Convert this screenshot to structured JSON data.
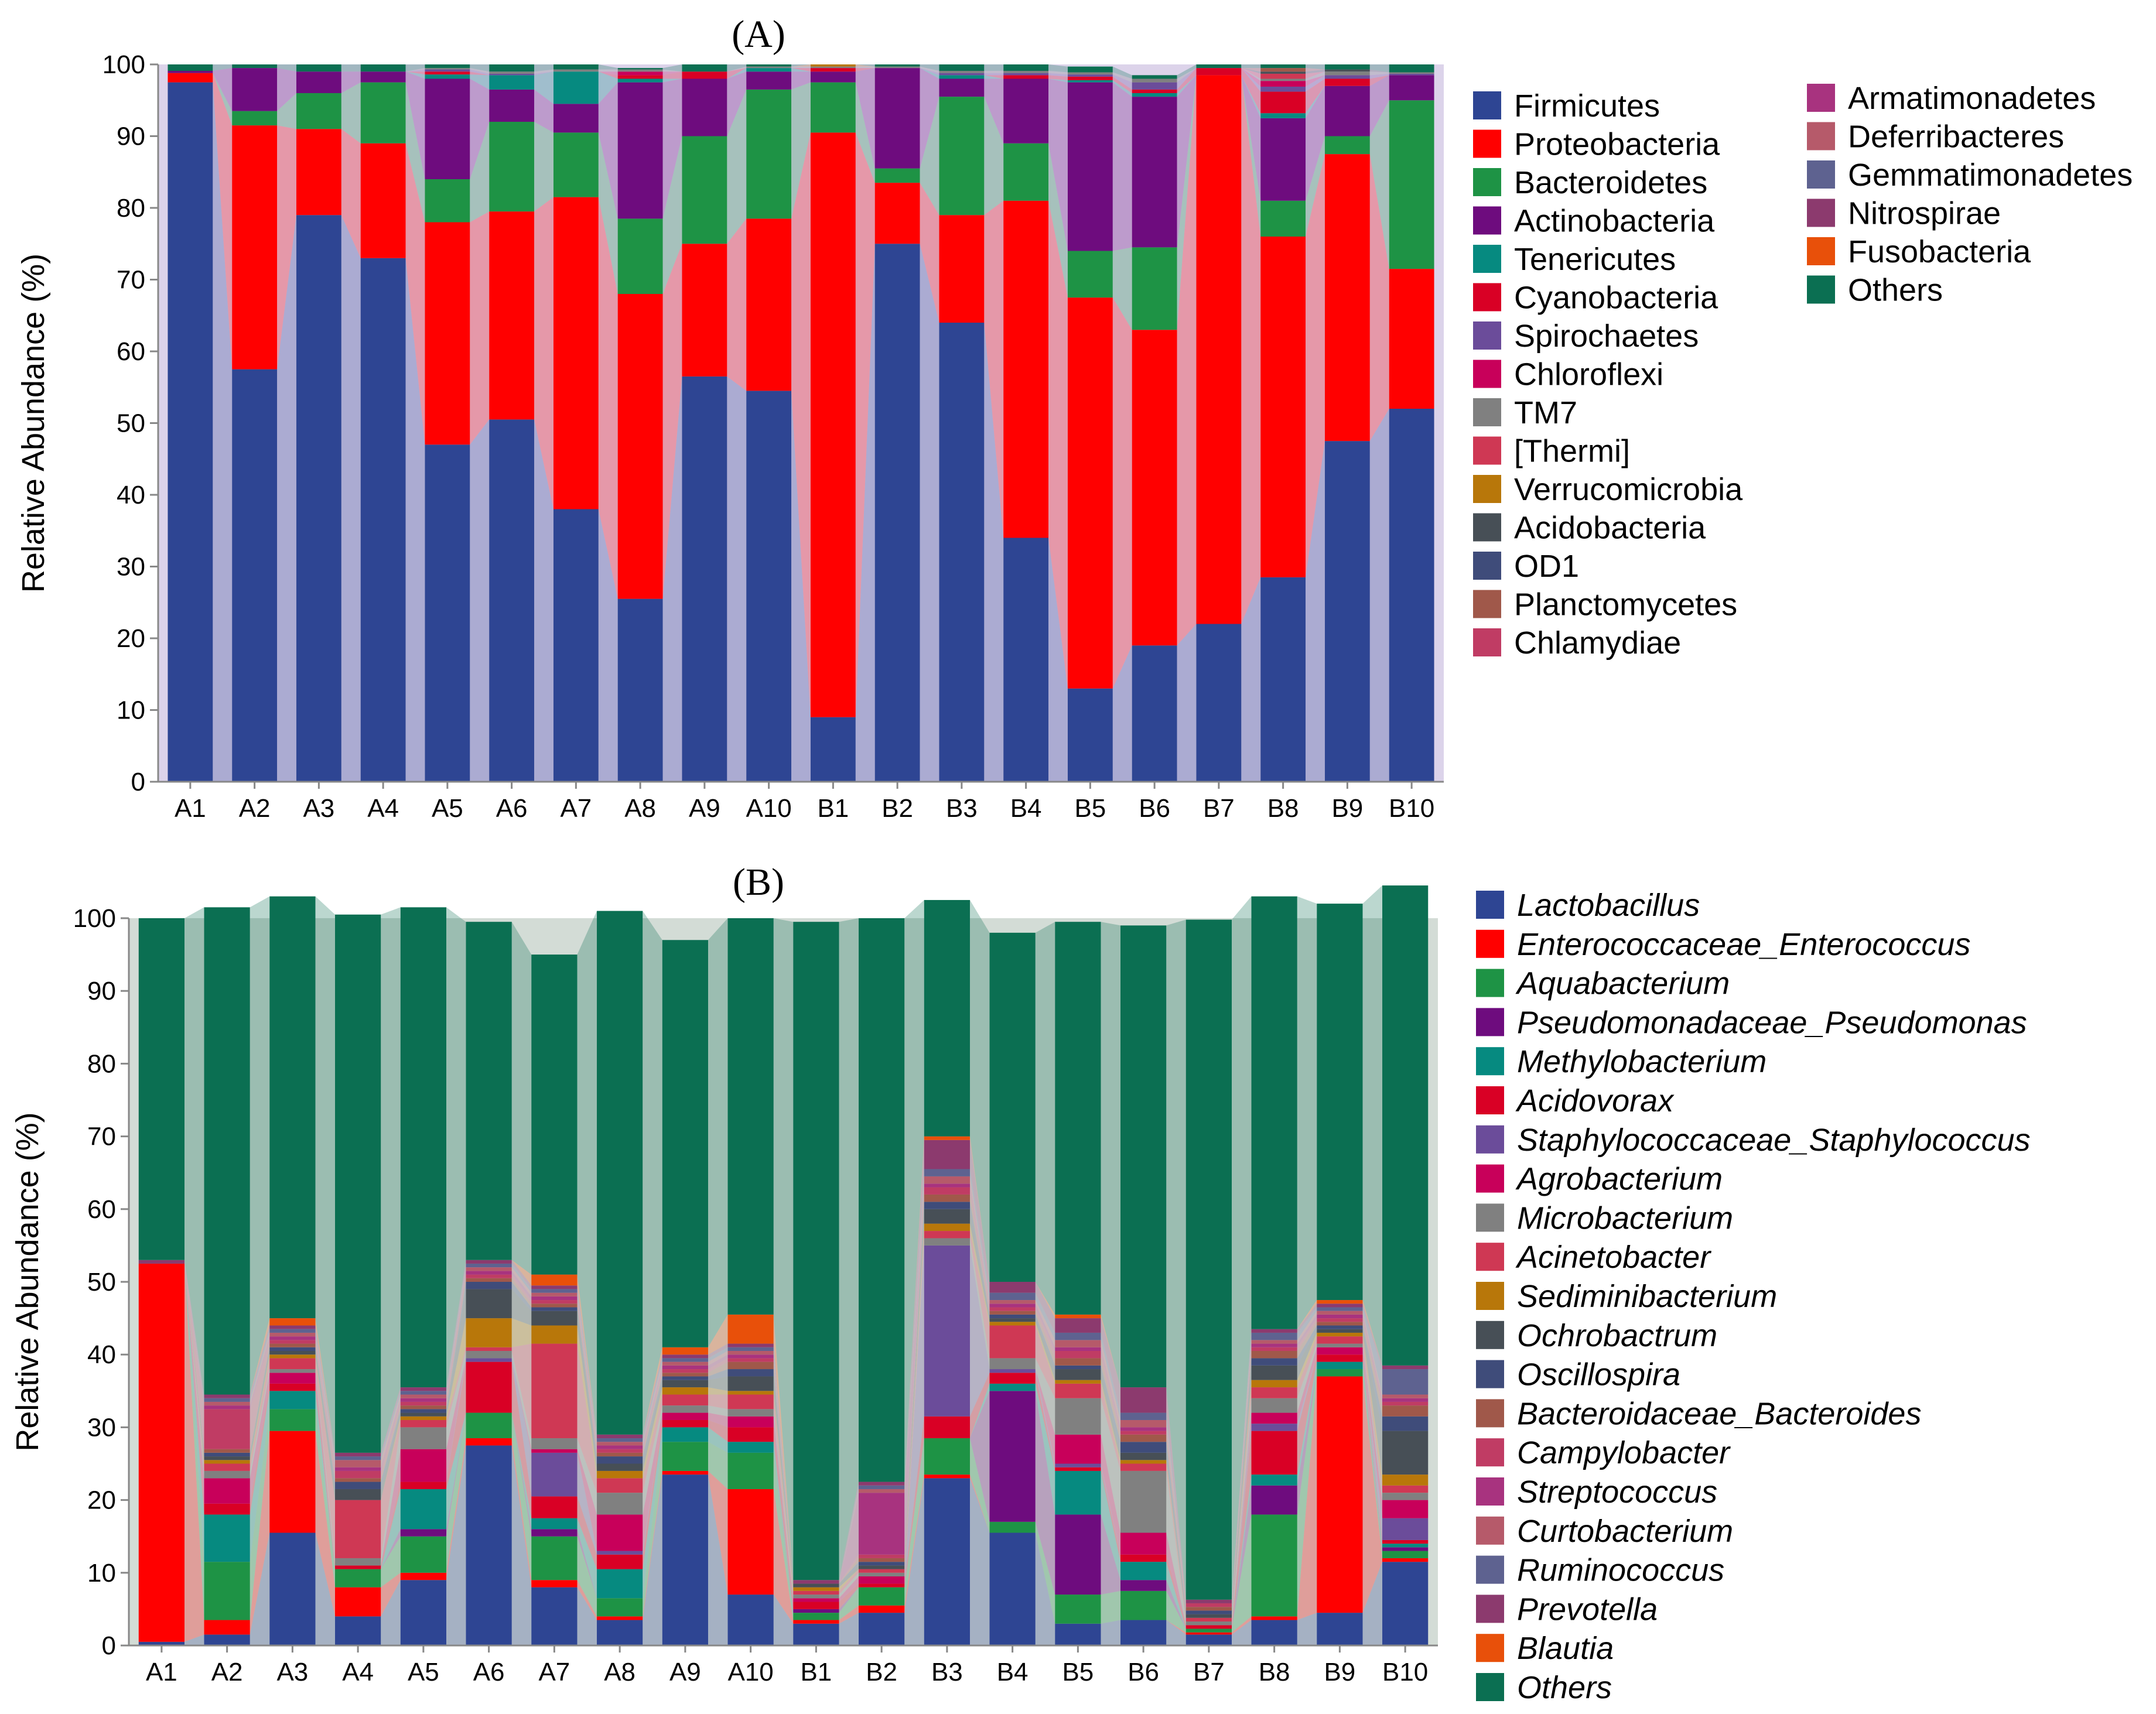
{
  "chart_data": [
    {
      "type": "bar",
      "stacked": true,
      "title": "(A)",
      "ylabel": "Relative Abundance (%)",
      "xlabel": "",
      "ylim": [
        0,
        100
      ],
      "yticks": [
        0,
        10,
        20,
        30,
        40,
        50,
        60,
        70,
        80,
        90,
        100
      ],
      "categories": [
        "A1",
        "A2",
        "A3",
        "A4",
        "A5",
        "A6",
        "A7",
        "A8",
        "A9",
        "A10",
        "B1",
        "B2",
        "B3",
        "B4",
        "B5",
        "B6",
        "B7",
        "B8",
        "B9",
        "B10"
      ],
      "legend_position": "right",
      "series": [
        {
          "name": "Firmicutes",
          "color": "#2E4593",
          "values": [
            97.5,
            57.5,
            79,
            73,
            47,
            50.5,
            38,
            25.5,
            56.5,
            54.5,
            9,
            75,
            64,
            34,
            13,
            19,
            22,
            28.5,
            47.5,
            52
          ]
        },
        {
          "name": "Proteobacteria",
          "color": "#FF0000",
          "values": [
            1.3,
            34,
            12,
            16,
            31,
            29,
            43.5,
            42.5,
            18.5,
            24,
            81.5,
            8.5,
            15,
            47,
            54.5,
            44,
            76.5,
            47.5,
            40,
            19.5
          ]
        },
        {
          "name": "Bacteroidetes",
          "color": "#1E9345",
          "values": [
            0,
            2,
            5,
            8.5,
            6,
            12.5,
            9,
            10.5,
            15,
            18,
            7,
            2,
            16.5,
            8,
            6.5,
            11.5,
            0,
            5,
            2.5,
            23.5
          ]
        },
        {
          "name": "Actinobacteria",
          "color": "#6E0C7E",
          "values": [
            0.3,
            6,
            3,
            1.5,
            14,
            4.5,
            4,
            19,
            8,
            2.5,
            1.5,
            14,
            2.5,
            9,
            23.5,
            21,
            0,
            11.5,
            7,
            3.5
          ]
        },
        {
          "name": "Tenericutes",
          "color": "#068A80",
          "values": [
            0,
            0,
            0,
            0,
            0.6,
            2,
            4.5,
            0.5,
            0,
            0.5,
            0,
            0,
            0.5,
            0,
            0.3,
            0.5,
            0,
            0.7,
            0,
            0
          ]
        },
        {
          "name": "Cyanobacteria",
          "color": "#D90025",
          "values": [
            0,
            0,
            0,
            0,
            0.4,
            0,
            0,
            0.5,
            1,
            0,
            0.5,
            0,
            0,
            0.5,
            0.5,
            0.5,
            1,
            3,
            1,
            0
          ]
        },
        {
          "name": "Spirochaetes",
          "color": "#6B4C9A",
          "values": [
            0,
            0,
            0,
            0,
            0.3,
            0.2,
            0,
            0,
            0,
            0,
            0,
            0,
            0.3,
            0.3,
            0.3,
            1,
            0,
            0.7,
            0.5,
            0.2
          ]
        },
        {
          "name": "Chloroflexi",
          "color": "#C8005A",
          "values": [
            0,
            0,
            0,
            0,
            0,
            0,
            0,
            0.5,
            0,
            0,
            0,
            0,
            0,
            0,
            0,
            0,
            0,
            0.8,
            0,
            0
          ]
        },
        {
          "name": "TM7",
          "color": "#808080",
          "values": [
            0,
            0,
            0,
            0,
            0.2,
            0.3,
            0.3,
            0.3,
            0,
            0.2,
            0.2,
            0.2,
            0.3,
            0.3,
            0.3,
            0.5,
            0,
            0.3,
            0.5,
            0.2
          ]
        },
        {
          "name": "[Thermi]",
          "color": "#CF3854",
          "values": [
            0,
            0,
            0,
            0,
            0,
            0,
            0,
            0,
            0,
            0,
            0,
            0,
            0,
            0,
            0,
            0,
            0,
            0.7,
            0,
            0
          ]
        },
        {
          "name": "Verrucomicrobia",
          "color": "#B8770A",
          "values": [
            0,
            0,
            0,
            0,
            0,
            0,
            0,
            0,
            0,
            0,
            0.3,
            0,
            0,
            0,
            0,
            0,
            0,
            0,
            0,
            0
          ]
        },
        {
          "name": "Acidobacteria",
          "color": "#474F56",
          "values": [
            0,
            0,
            0,
            0,
            0,
            0,
            0,
            0,
            0,
            0,
            0,
            0,
            0,
            0,
            0,
            0,
            0,
            0.3,
            0.3,
            0
          ]
        },
        {
          "name": "OD1",
          "color": "#3F4C7A",
          "values": [
            0,
            0,
            0,
            0,
            0,
            0,
            0,
            0,
            0,
            0,
            0,
            0,
            0,
            0,
            0,
            0,
            0,
            0,
            0,
            0
          ]
        },
        {
          "name": "Planctomycetes",
          "color": "#A0584A",
          "values": [
            0,
            0,
            0,
            0,
            0,
            0,
            0,
            0,
            0,
            0,
            0,
            0,
            0,
            0,
            0,
            0,
            0,
            0.5,
            0,
            0
          ]
        },
        {
          "name": "Chlamydiae",
          "color": "#C03C64",
          "values": [
            0,
            0,
            0,
            0,
            0,
            0,
            0,
            0,
            0,
            0,
            0,
            0,
            0,
            0,
            0,
            0,
            0,
            0,
            0,
            0
          ]
        },
        {
          "name": "Armatimonadetes",
          "color": "#A8337F",
          "values": [
            0,
            0,
            0,
            0,
            0,
            0,
            0,
            0,
            0,
            0,
            0,
            0,
            0,
            0,
            0,
            0,
            0,
            0,
            0,
            0
          ]
        },
        {
          "name": "Deferribacteres",
          "color": "#B65A6A",
          "values": [
            0,
            0,
            0,
            0,
            0,
            0,
            0,
            0,
            0,
            0,
            0,
            0,
            0,
            0,
            0,
            0,
            0,
            0,
            0,
            0
          ]
        },
        {
          "name": "Gemmatimonadetes",
          "color": "#5E6290",
          "values": [
            0,
            0,
            0,
            0,
            0,
            0,
            0,
            0,
            0,
            0,
            0,
            0,
            0,
            0,
            0,
            0,
            0,
            0,
            0,
            0
          ]
        },
        {
          "name": "Nitrospirae",
          "color": "#8C3A6E",
          "values": [
            0,
            0,
            0,
            0,
            0,
            0,
            0,
            0,
            0,
            0,
            0,
            0,
            0,
            0,
            0,
            0,
            0,
            0,
            0,
            0
          ]
        },
        {
          "name": "Fusobacteria",
          "color": "#E8500A",
          "values": [
            0,
            0,
            0,
            0,
            0,
            0,
            0,
            0,
            0,
            0,
            0,
            0,
            0,
            0,
            0,
            0,
            0,
            0,
            0,
            0
          ]
        },
        {
          "name": "Others",
          "color": "#0B6F52",
          "values": [
            0.9,
            0.5,
            1,
            1,
            0.5,
            1,
            0.7,
            0.2,
            1,
            0.3,
            0,
            0.3,
            0.9,
            0.9,
            0.8,
            0.5,
            0.5,
            0.5,
            0.7,
            1.1
          ]
        }
      ]
    },
    {
      "type": "bar",
      "stacked": true,
      "title": "(B)",
      "ylabel": "Relative Abundance (%)",
      "xlabel": "",
      "ylim": [
        0,
        100
      ],
      "yticks": [
        0,
        10,
        20,
        30,
        40,
        50,
        60,
        70,
        80,
        90,
        100
      ],
      "categories": [
        "A1",
        "A2",
        "A3",
        "A4",
        "A5",
        "A6",
        "A7",
        "A8",
        "A9",
        "A10",
        "B1",
        "B2",
        "B3",
        "B4",
        "B5",
        "B6",
        "B7",
        "B8",
        "B9",
        "B10"
      ],
      "legend_position": "right",
      "legend_italic": true,
      "series": [
        {
          "name": "Lactobacillus",
          "color": "#2E4593",
          "values": [
            0.5,
            1.5,
            15.5,
            4,
            9,
            27.5,
            8,
            3.5,
            23.5,
            7,
            3,
            4.5,
            23,
            15.5,
            3,
            3.5,
            1.5,
            3.5,
            4.5,
            11.5
          ]
        },
        {
          "name": "Enterococcaceae_Enterococcus",
          "color": "#FF0000",
          "values": [
            52,
            2,
            14,
            4,
            1,
            1,
            1,
            0.5,
            0.5,
            14.5,
            0.5,
            1,
            0.5,
            0,
            0,
            0,
            0.3,
            0.5,
            32.5,
            0.5
          ]
        },
        {
          "name": "Aquabacterium",
          "color": "#1E9345",
          "values": [
            0,
            8,
            3,
            2.5,
            5,
            3.5,
            6,
            2.5,
            4,
            5,
            1,
            2.5,
            5,
            1.5,
            4,
            4,
            0.5,
            14,
            1,
            1
          ]
        },
        {
          "name": "Pseudomonadaceae_Pseudomonas",
          "color": "#6E0C7E",
          "values": [
            0,
            0,
            0,
            0,
            1,
            0,
            1,
            0,
            0,
            0,
            0.5,
            0,
            0,
            18,
            11,
            1.5,
            0,
            4,
            0,
            0.5
          ]
        },
        {
          "name": "Methylobacterium",
          "color": "#068A80",
          "values": [
            0,
            6.5,
            2.5,
            0,
            5.5,
            0,
            1.5,
            4,
            2,
            1.5,
            0,
            0,
            0,
            1,
            6,
            2.5,
            0,
            1.5,
            1,
            0.5
          ]
        },
        {
          "name": "Acidovorax",
          "color": "#D90025",
          "values": [
            0,
            1.5,
            1,
            0.5,
            1,
            7,
            3,
            2,
            1,
            2,
            1,
            0.5,
            3,
            1.5,
            0.5,
            1,
            0.5,
            6,
            1,
            0.5
          ]
        },
        {
          "name": "Staphylococcaceae_Staphylococcus",
          "color": "#6B4C9A",
          "values": [
            0,
            0,
            0,
            0,
            0,
            0.5,
            6,
            0.5,
            0,
            0,
            0,
            0,
            23.5,
            0.5,
            0.5,
            0,
            0,
            1,
            0,
            3
          ]
        },
        {
          "name": "Agrobacterium",
          "color": "#C8005A",
          "values": [
            0,
            3.5,
            1.5,
            0,
            4.5,
            0,
            0.5,
            5,
            1,
            1.5,
            0.5,
            1,
            0,
            0,
            4,
            3,
            0,
            1.5,
            1,
            2.5
          ]
        },
        {
          "name": "Microbacterium",
          "color": "#808080",
          "values": [
            0,
            1,
            0.5,
            1,
            3,
            1,
            1.5,
            3,
            1,
            1,
            0.5,
            0.5,
            1,
            1.5,
            5,
            8.5,
            0.5,
            2,
            0.5,
            1
          ]
        },
        {
          "name": "Acinetobacter",
          "color": "#CF3854",
          "values": [
            0,
            1,
            1.5,
            8,
            1,
            0.5,
            13,
            2,
            1.5,
            2,
            0.5,
            0.5,
            1,
            4.5,
            2,
            1,
            0.5,
            1.5,
            1,
            1
          ]
        },
        {
          "name": "Sediminibacterium",
          "color": "#B8770A",
          "values": [
            0,
            0.5,
            0.5,
            0,
            0.5,
            4,
            2.5,
            1,
            1,
            0.5,
            0.5,
            0,
            1,
            0.5,
            0.5,
            0.5,
            0,
            1,
            0.5,
            1.5
          ]
        },
        {
          "name": "Ochrobactrum",
          "color": "#474F56",
          "values": [
            0,
            0.5,
            0.5,
            1.5,
            0.5,
            4,
            2,
            1,
            1,
            2,
            0.5,
            0.5,
            2,
            0.5,
            1.5,
            1,
            0.5,
            2,
            0.5,
            6
          ]
        },
        {
          "name": "Oscillospira",
          "color": "#3F4C7A",
          "values": [
            0,
            0.5,
            0.5,
            1,
            0.5,
            1,
            0.5,
            1,
            0.5,
            1,
            0,
            0.5,
            1,
            0.5,
            0.5,
            1.5,
            0.5,
            1,
            0.5,
            2
          ]
        },
        {
          "name": "Bacteroidaceae_Bacteroides",
          "color": "#A0584A",
          "values": [
            0,
            0.5,
            0.5,
            0.5,
            0.5,
            0.5,
            0.5,
            0.5,
            0.5,
            1,
            0,
            0.5,
            1,
            0.5,
            1,
            1,
            0.5,
            1,
            0.5,
            1.5
          ]
        },
        {
          "name": "Campylobacter",
          "color": "#C03C64",
          "values": [
            0,
            5.5,
            0.5,
            1,
            0.5,
            0.5,
            0.5,
            0.5,
            0.5,
            0.5,
            0,
            0.5,
            1,
            0.5,
            1,
            0.5,
            0.5,
            0.5,
            0.5,
            0.5
          ]
        },
        {
          "name": "Streptococcus",
          "color": "#A8337F",
          "values": [
            0,
            0.5,
            0.5,
            0.5,
            0.5,
            0.5,
            0.5,
            0.5,
            0.5,
            0.5,
            0,
            8.5,
            0.5,
            0.5,
            0.5,
            0.5,
            0,
            0.5,
            0.5,
            0.5
          ]
        },
        {
          "name": "Curtobacterium",
          "color": "#B65A6A",
          "values": [
            0,
            0.5,
            0.5,
            1,
            0.5,
            0.5,
            0.5,
            0.5,
            0.5,
            0.5,
            0,
            0.5,
            1,
            0.5,
            1,
            1,
            0,
            0.5,
            0.5,
            0.5
          ]
        },
        {
          "name": "Ruminococcus",
          "color": "#5E6290",
          "values": [
            0,
            0.5,
            0.5,
            0.5,
            0.5,
            0.5,
            0.5,
            0.5,
            0.5,
            0.5,
            0,
            0.5,
            1,
            1,
            1,
            1,
            0,
            1,
            0.5,
            3.5
          ]
        },
        {
          "name": "Prevotella",
          "color": "#8C3A6E",
          "values": [
            0.5,
            0.5,
            0.5,
            0.5,
            0.5,
            0.5,
            0.5,
            0.5,
            0.5,
            0.5,
            0.5,
            0.5,
            4,
            1.5,
            2,
            3.5,
            0.5,
            0.5,
            0.5,
            0.5
          ]
        },
        {
          "name": "Blautia",
          "color": "#E8500A",
          "values": [
            0,
            0,
            1,
            0,
            0,
            0,
            1.5,
            0,
            1,
            4,
            0,
            0,
            0.5,
            0,
            0.5,
            0,
            0,
            0,
            0.5,
            0
          ]
        },
        {
          "name": "Others",
          "color": "#0B6F52",
          "values": [
            47,
            67,
            58,
            74,
            66,
            46.5,
            44,
            72,
            56,
            54.5,
            90.5,
            77.5,
            32.5,
            48,
            54,
            63.5,
            93.5,
            59.5,
            54.5,
            66
          ]
        }
      ]
    }
  ]
}
